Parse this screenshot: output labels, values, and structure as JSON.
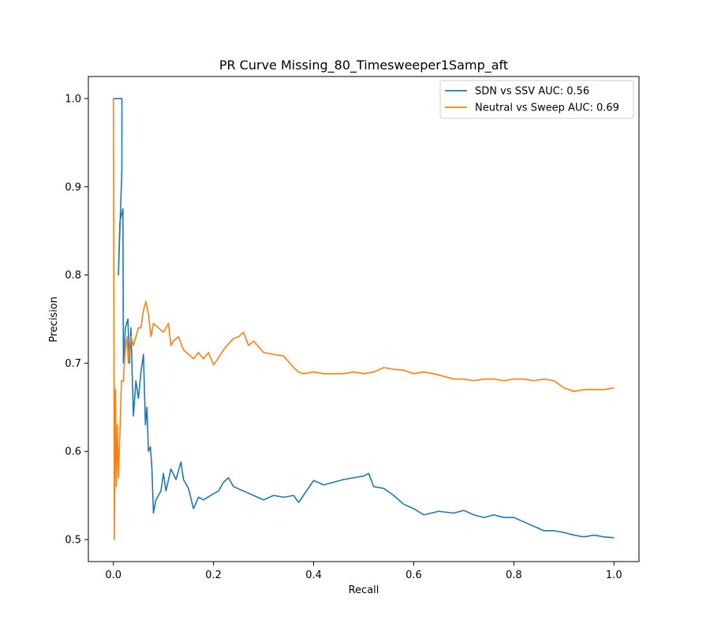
{
  "chart_data": {
    "type": "line",
    "title": "PR Curve Missing_80_Timesweeper1Samp_aft",
    "xlabel": "Recall",
    "ylabel": "Precision",
    "xlim": [
      -0.05,
      1.05
    ],
    "ylim": [
      0.475,
      1.025
    ],
    "xticks": [
      0.0,
      0.2,
      0.4,
      0.6,
      0.8,
      1.0
    ],
    "xtick_labels": [
      "0.0",
      "0.2",
      "0.4",
      "0.6",
      "0.8",
      "1.0"
    ],
    "yticks": [
      0.5,
      0.6,
      0.7,
      0.8,
      0.9,
      1.0
    ],
    "ytick_labels": [
      "0.5",
      "0.6",
      "0.7",
      "0.8",
      "0.9",
      "1.0"
    ],
    "grid": false,
    "legend_position": "top-right",
    "series": [
      {
        "name": "SDN vs SSV AUC: 0.56",
        "color": "#1f77b4",
        "points": [
          [
            0.0,
            1.0
          ],
          [
            0.017,
            1.0
          ],
          [
            0.017,
            0.92
          ],
          [
            0.01,
            0.8
          ],
          [
            0.013,
            0.86
          ],
          [
            0.019,
            0.875
          ],
          [
            0.02,
            0.7
          ],
          [
            0.024,
            0.74
          ],
          [
            0.029,
            0.75
          ],
          [
            0.032,
            0.7
          ],
          [
            0.035,
            0.74
          ],
          [
            0.04,
            0.64
          ],
          [
            0.045,
            0.68
          ],
          [
            0.05,
            0.66
          ],
          [
            0.055,
            0.69
          ],
          [
            0.06,
            0.71
          ],
          [
            0.064,
            0.63
          ],
          [
            0.067,
            0.65
          ],
          [
            0.07,
            0.6
          ],
          [
            0.074,
            0.605
          ],
          [
            0.077,
            0.58
          ],
          [
            0.08,
            0.53
          ],
          [
            0.085,
            0.545
          ],
          [
            0.095,
            0.555
          ],
          [
            0.1,
            0.575
          ],
          [
            0.105,
            0.555
          ],
          [
            0.115,
            0.58
          ],
          [
            0.125,
            0.568
          ],
          [
            0.135,
            0.588
          ],
          [
            0.14,
            0.568
          ],
          [
            0.15,
            0.558
          ],
          [
            0.16,
            0.535
          ],
          [
            0.17,
            0.548
          ],
          [
            0.18,
            0.545
          ],
          [
            0.2,
            0.552
          ],
          [
            0.21,
            0.555
          ],
          [
            0.22,
            0.565
          ],
          [
            0.23,
            0.57
          ],
          [
            0.24,
            0.56
          ],
          [
            0.26,
            0.555
          ],
          [
            0.28,
            0.55
          ],
          [
            0.3,
            0.545
          ],
          [
            0.32,
            0.55
          ],
          [
            0.34,
            0.548
          ],
          [
            0.36,
            0.55
          ],
          [
            0.37,
            0.542
          ],
          [
            0.4,
            0.567
          ],
          [
            0.42,
            0.562
          ],
          [
            0.44,
            0.565
          ],
          [
            0.46,
            0.568
          ],
          [
            0.48,
            0.57
          ],
          [
            0.5,
            0.572
          ],
          [
            0.51,
            0.575
          ],
          [
            0.52,
            0.56
          ],
          [
            0.54,
            0.558
          ],
          [
            0.56,
            0.55
          ],
          [
            0.58,
            0.54
          ],
          [
            0.6,
            0.535
          ],
          [
            0.62,
            0.528
          ],
          [
            0.65,
            0.532
          ],
          [
            0.68,
            0.53
          ],
          [
            0.7,
            0.533
          ],
          [
            0.72,
            0.528
          ],
          [
            0.74,
            0.525
          ],
          [
            0.76,
            0.528
          ],
          [
            0.78,
            0.525
          ],
          [
            0.8,
            0.525
          ],
          [
            0.82,
            0.52
          ],
          [
            0.84,
            0.515
          ],
          [
            0.86,
            0.51
          ],
          [
            0.88,
            0.51
          ],
          [
            0.9,
            0.508
          ],
          [
            0.92,
            0.505
          ],
          [
            0.94,
            0.503
          ],
          [
            0.96,
            0.505
          ],
          [
            0.98,
            0.503
          ],
          [
            1.0,
            0.502
          ]
        ]
      },
      {
        "name": "Neutral vs Sweep AUC: 0.69",
        "color": "#ff7f0e",
        "points": [
          [
            0.0,
            1.0
          ],
          [
            0.002,
            0.5
          ],
          [
            0.004,
            0.67
          ],
          [
            0.006,
            0.56
          ],
          [
            0.008,
            0.63
          ],
          [
            0.01,
            0.57
          ],
          [
            0.013,
            0.62
          ],
          [
            0.016,
            0.68
          ],
          [
            0.02,
            0.68
          ],
          [
            0.023,
            0.71
          ],
          [
            0.027,
            0.73
          ],
          [
            0.03,
            0.7
          ],
          [
            0.035,
            0.73
          ],
          [
            0.04,
            0.72
          ],
          [
            0.045,
            0.73
          ],
          [
            0.05,
            0.74
          ],
          [
            0.055,
            0.74
          ],
          [
            0.06,
            0.76
          ],
          [
            0.065,
            0.77
          ],
          [
            0.07,
            0.755
          ],
          [
            0.075,
            0.73
          ],
          [
            0.08,
            0.745
          ],
          [
            0.09,
            0.74
          ],
          [
            0.1,
            0.735
          ],
          [
            0.11,
            0.745
          ],
          [
            0.115,
            0.72
          ],
          [
            0.12,
            0.725
          ],
          [
            0.13,
            0.73
          ],
          [
            0.14,
            0.715
          ],
          [
            0.15,
            0.71
          ],
          [
            0.16,
            0.705
          ],
          [
            0.17,
            0.712
          ],
          [
            0.18,
            0.705
          ],
          [
            0.19,
            0.712
          ],
          [
            0.2,
            0.698
          ],
          [
            0.21,
            0.706
          ],
          [
            0.22,
            0.715
          ],
          [
            0.23,
            0.722
          ],
          [
            0.24,
            0.728
          ],
          [
            0.25,
            0.73
          ],
          [
            0.26,
            0.735
          ],
          [
            0.27,
            0.72
          ],
          [
            0.28,
            0.725
          ],
          [
            0.3,
            0.712
          ],
          [
            0.32,
            0.71
          ],
          [
            0.34,
            0.708
          ],
          [
            0.36,
            0.695
          ],
          [
            0.37,
            0.69
          ],
          [
            0.38,
            0.688
          ],
          [
            0.4,
            0.69
          ],
          [
            0.42,
            0.688
          ],
          [
            0.44,
            0.688
          ],
          [
            0.46,
            0.688
          ],
          [
            0.48,
            0.69
          ],
          [
            0.5,
            0.688
          ],
          [
            0.52,
            0.69
          ],
          [
            0.54,
            0.695
          ],
          [
            0.56,
            0.693
          ],
          [
            0.58,
            0.692
          ],
          [
            0.6,
            0.688
          ],
          [
            0.62,
            0.69
          ],
          [
            0.64,
            0.688
          ],
          [
            0.66,
            0.685
          ],
          [
            0.68,
            0.682
          ],
          [
            0.7,
            0.682
          ],
          [
            0.72,
            0.68
          ],
          [
            0.74,
            0.682
          ],
          [
            0.76,
            0.682
          ],
          [
            0.78,
            0.68
          ],
          [
            0.8,
            0.682
          ],
          [
            0.82,
            0.682
          ],
          [
            0.84,
            0.68
          ],
          [
            0.86,
            0.682
          ],
          [
            0.88,
            0.68
          ],
          [
            0.9,
            0.672
          ],
          [
            0.92,
            0.668
          ],
          [
            0.94,
            0.67
          ],
          [
            0.96,
            0.67
          ],
          [
            0.98,
            0.67
          ],
          [
            1.0,
            0.672
          ]
        ]
      }
    ]
  }
}
